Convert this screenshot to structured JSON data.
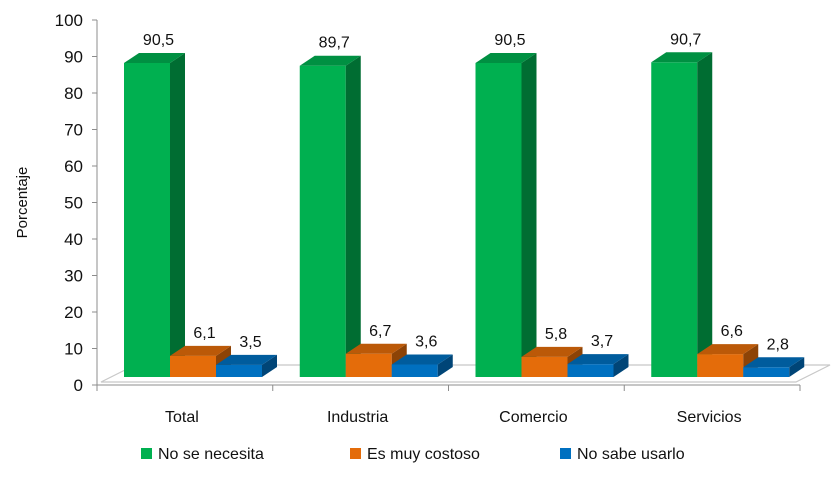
{
  "chart_data": {
    "type": "bar",
    "categories": [
      "Total",
      "Industria",
      "Comercio",
      "Servicios"
    ],
    "series": [
      {
        "name": "No se necesita",
        "values": [
          90.5,
          89.7,
          90.5,
          90.7
        ],
        "value_labels": [
          "90,5",
          "89,7",
          "90,5",
          "90,7"
        ],
        "color": "#00b050"
      },
      {
        "name": "Es muy costoso",
        "values": [
          6.1,
          6.7,
          5.8,
          6.6
        ],
        "value_labels": [
          "6,1",
          "6,7",
          "5,8",
          "6,6"
        ],
        "color": "#e46c0a"
      },
      {
        "name": "No sabe usarlo",
        "values": [
          3.5,
          3.6,
          3.7,
          2.8
        ],
        "value_labels": [
          "3,5",
          "3,6",
          "3,7",
          "2,8"
        ],
        "color": "#0070c0"
      }
    ],
    "ylabel": "Porcentaje",
    "ylim": [
      0,
      100
    ],
    "yticks": [
      0,
      10,
      20,
      30,
      40,
      50,
      60,
      70,
      80,
      90,
      100
    ],
    "legend_position": "bottom",
    "grid": false,
    "style": "3d-clustered-column"
  }
}
